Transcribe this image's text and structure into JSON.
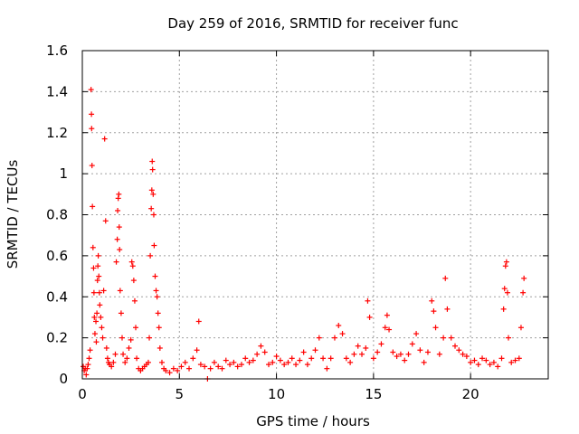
{
  "chart_data": {
    "type": "scatter",
    "title": "Day 259 of 2016, SRMTID for receiver func",
    "xlabel": "GPS time / hours",
    "ylabel": "SRMTID / TECUs",
    "xlim": [
      0,
      24
    ],
    "ylim": [
      0,
      1.6
    ],
    "xticks": [
      0,
      5,
      10,
      15,
      20
    ],
    "yticks": [
      0,
      0.2,
      0.4,
      0.6,
      0.8,
      1,
      1.2,
      1.4,
      1.6
    ],
    "ytick_labels": [
      "0",
      "0.2",
      "0.4",
      "0.6",
      "0.8",
      "1",
      "1.2",
      "1.4",
      "1.6"
    ],
    "grid": true,
    "marker": "+",
    "color": "#ff0000",
    "series": [
      {
        "name": "SRMTID",
        "points": [
          [
            0.05,
            0.06
          ],
          [
            0.1,
            0.04
          ],
          [
            0.15,
            0.05
          ],
          [
            0.2,
            0.02
          ],
          [
            0.25,
            0.05
          ],
          [
            0.3,
            0.07
          ],
          [
            0.35,
            0.1
          ],
          [
            0.4,
            0.14
          ],
          [
            0.45,
            1.41
          ],
          [
            0.47,
            1.29
          ],
          [
            0.48,
            1.22
          ],
          [
            0.5,
            1.04
          ],
          [
            0.52,
            0.84
          ],
          [
            0.55,
            0.64
          ],
          [
            0.58,
            0.54
          ],
          [
            0.6,
            0.42
          ],
          [
            0.62,
            0.3
          ],
          [
            0.65,
            0.22
          ],
          [
            0.7,
            0.28
          ],
          [
            0.72,
            0.18
          ],
          [
            0.75,
            0.32
          ],
          [
            0.78,
            0.48
          ],
          [
            0.8,
            0.55
          ],
          [
            0.82,
            0.6
          ],
          [
            0.85,
            0.5
          ],
          [
            0.88,
            0.42
          ],
          [
            0.9,
            0.36
          ],
          [
            0.95,
            0.3
          ],
          [
            1.0,
            0.25
          ],
          [
            1.05,
            0.2
          ],
          [
            1.1,
            0.43
          ],
          [
            1.15,
            1.17
          ],
          [
            1.2,
            0.77
          ],
          [
            1.25,
            0.15
          ],
          [
            1.3,
            0.1
          ],
          [
            1.35,
            0.08
          ],
          [
            1.4,
            0.07
          ],
          [
            1.5,
            0.06
          ],
          [
            1.6,
            0.08
          ],
          [
            1.7,
            0.12
          ],
          [
            1.75,
            0.57
          ],
          [
            1.8,
            0.68
          ],
          [
            1.82,
            0.82
          ],
          [
            1.85,
            0.88
          ],
          [
            1.88,
            0.9
          ],
          [
            1.9,
            0.74
          ],
          [
            1.92,
            0.63
          ],
          [
            1.95,
            0.43
          ],
          [
            2.0,
            0.32
          ],
          [
            2.05,
            0.2
          ],
          [
            2.1,
            0.12
          ],
          [
            2.2,
            0.08
          ],
          [
            2.3,
            0.1
          ],
          [
            2.4,
            0.15
          ],
          [
            2.5,
            0.19
          ],
          [
            2.55,
            0.57
          ],
          [
            2.6,
            0.55
          ],
          [
            2.65,
            0.48
          ],
          [
            2.7,
            0.38
          ],
          [
            2.75,
            0.25
          ],
          [
            2.8,
            0.1
          ],
          [
            2.9,
            0.05
          ],
          [
            3.0,
            0.04
          ],
          [
            3.1,
            0.05
          ],
          [
            3.2,
            0.06
          ],
          [
            3.3,
            0.07
          ],
          [
            3.4,
            0.08
          ],
          [
            3.45,
            0.2
          ],
          [
            3.5,
            0.6
          ],
          [
            3.55,
            0.83
          ],
          [
            3.58,
            0.92
          ],
          [
            3.6,
            1.06
          ],
          [
            3.62,
            1.02
          ],
          [
            3.65,
            0.9
          ],
          [
            3.68,
            0.8
          ],
          [
            3.7,
            0.65
          ],
          [
            3.75,
            0.5
          ],
          [
            3.8,
            0.43
          ],
          [
            3.85,
            0.4
          ],
          [
            3.9,
            0.32
          ],
          [
            3.95,
            0.25
          ],
          [
            4.0,
            0.15
          ],
          [
            4.1,
            0.08
          ],
          [
            4.2,
            0.05
          ],
          [
            4.3,
            0.04
          ],
          [
            4.5,
            0.03
          ],
          [
            4.7,
            0.05
          ],
          [
            4.9,
            0.04
          ],
          [
            5.1,
            0.06
          ],
          [
            5.3,
            0.08
          ],
          [
            5.5,
            0.05
          ],
          [
            5.7,
            0.1
          ],
          [
            5.9,
            0.14
          ],
          [
            6.0,
            0.28
          ],
          [
            6.1,
            0.07
          ],
          [
            6.3,
            0.06
          ],
          [
            6.45,
            0.0
          ],
          [
            6.6,
            0.05
          ],
          [
            6.8,
            0.08
          ],
          [
            7.0,
            0.06
          ],
          [
            7.2,
            0.05
          ],
          [
            7.4,
            0.09
          ],
          [
            7.6,
            0.07
          ],
          [
            7.8,
            0.08
          ],
          [
            8.0,
            0.06
          ],
          [
            8.2,
            0.07
          ],
          [
            8.4,
            0.1
          ],
          [
            8.6,
            0.08
          ],
          [
            8.8,
            0.09
          ],
          [
            9.0,
            0.12
          ],
          [
            9.2,
            0.16
          ],
          [
            9.4,
            0.13
          ],
          [
            9.6,
            0.07
          ],
          [
            9.8,
            0.08
          ],
          [
            10.0,
            0.11
          ],
          [
            10.2,
            0.09
          ],
          [
            10.4,
            0.07
          ],
          [
            10.6,
            0.08
          ],
          [
            10.8,
            0.1
          ],
          [
            11.0,
            0.07
          ],
          [
            11.2,
            0.09
          ],
          [
            11.4,
            0.13
          ],
          [
            11.6,
            0.07
          ],
          [
            11.8,
            0.1
          ],
          [
            12.0,
            0.14
          ],
          [
            12.2,
            0.2
          ],
          [
            12.4,
            0.1
          ],
          [
            12.6,
            0.05
          ],
          [
            12.8,
            0.1
          ],
          [
            13.0,
            0.2
          ],
          [
            13.2,
            0.26
          ],
          [
            13.4,
            0.22
          ],
          [
            13.6,
            0.1
          ],
          [
            13.8,
            0.08
          ],
          [
            14.0,
            0.12
          ],
          [
            14.2,
            0.16
          ],
          [
            14.4,
            0.12
          ],
          [
            14.6,
            0.15
          ],
          [
            14.7,
            0.38
          ],
          [
            14.8,
            0.3
          ],
          [
            15.0,
            0.1
          ],
          [
            15.2,
            0.13
          ],
          [
            15.4,
            0.17
          ],
          [
            15.6,
            0.25
          ],
          [
            15.7,
            0.31
          ],
          [
            15.8,
            0.24
          ],
          [
            16.0,
            0.13
          ],
          [
            16.2,
            0.11
          ],
          [
            16.4,
            0.12
          ],
          [
            16.6,
            0.09
          ],
          [
            16.8,
            0.12
          ],
          [
            17.0,
            0.17
          ],
          [
            17.2,
            0.22
          ],
          [
            17.4,
            0.14
          ],
          [
            17.6,
            0.08
          ],
          [
            17.8,
            0.13
          ],
          [
            18.0,
            0.38
          ],
          [
            18.1,
            0.33
          ],
          [
            18.2,
            0.25
          ],
          [
            18.4,
            0.12
          ],
          [
            18.6,
            0.2
          ],
          [
            18.7,
            0.49
          ],
          [
            18.8,
            0.34
          ],
          [
            19.0,
            0.2
          ],
          [
            19.2,
            0.16
          ],
          [
            19.4,
            0.14
          ],
          [
            19.6,
            0.12
          ],
          [
            19.8,
            0.11
          ],
          [
            20.0,
            0.08
          ],
          [
            20.2,
            0.09
          ],
          [
            20.4,
            0.07
          ],
          [
            20.6,
            0.1
          ],
          [
            20.8,
            0.09
          ],
          [
            21.0,
            0.07
          ],
          [
            21.2,
            0.08
          ],
          [
            21.4,
            0.06
          ],
          [
            21.6,
            0.1
          ],
          [
            21.7,
            0.34
          ],
          [
            21.75,
            0.44
          ],
          [
            21.8,
            0.55
          ],
          [
            21.85,
            0.57
          ],
          [
            21.9,
            0.42
          ],
          [
            21.95,
            0.2
          ],
          [
            22.1,
            0.08
          ],
          [
            22.3,
            0.09
          ],
          [
            22.5,
            0.1
          ],
          [
            22.6,
            0.25
          ],
          [
            22.7,
            0.42
          ],
          [
            22.75,
            0.49
          ]
        ]
      }
    ]
  }
}
